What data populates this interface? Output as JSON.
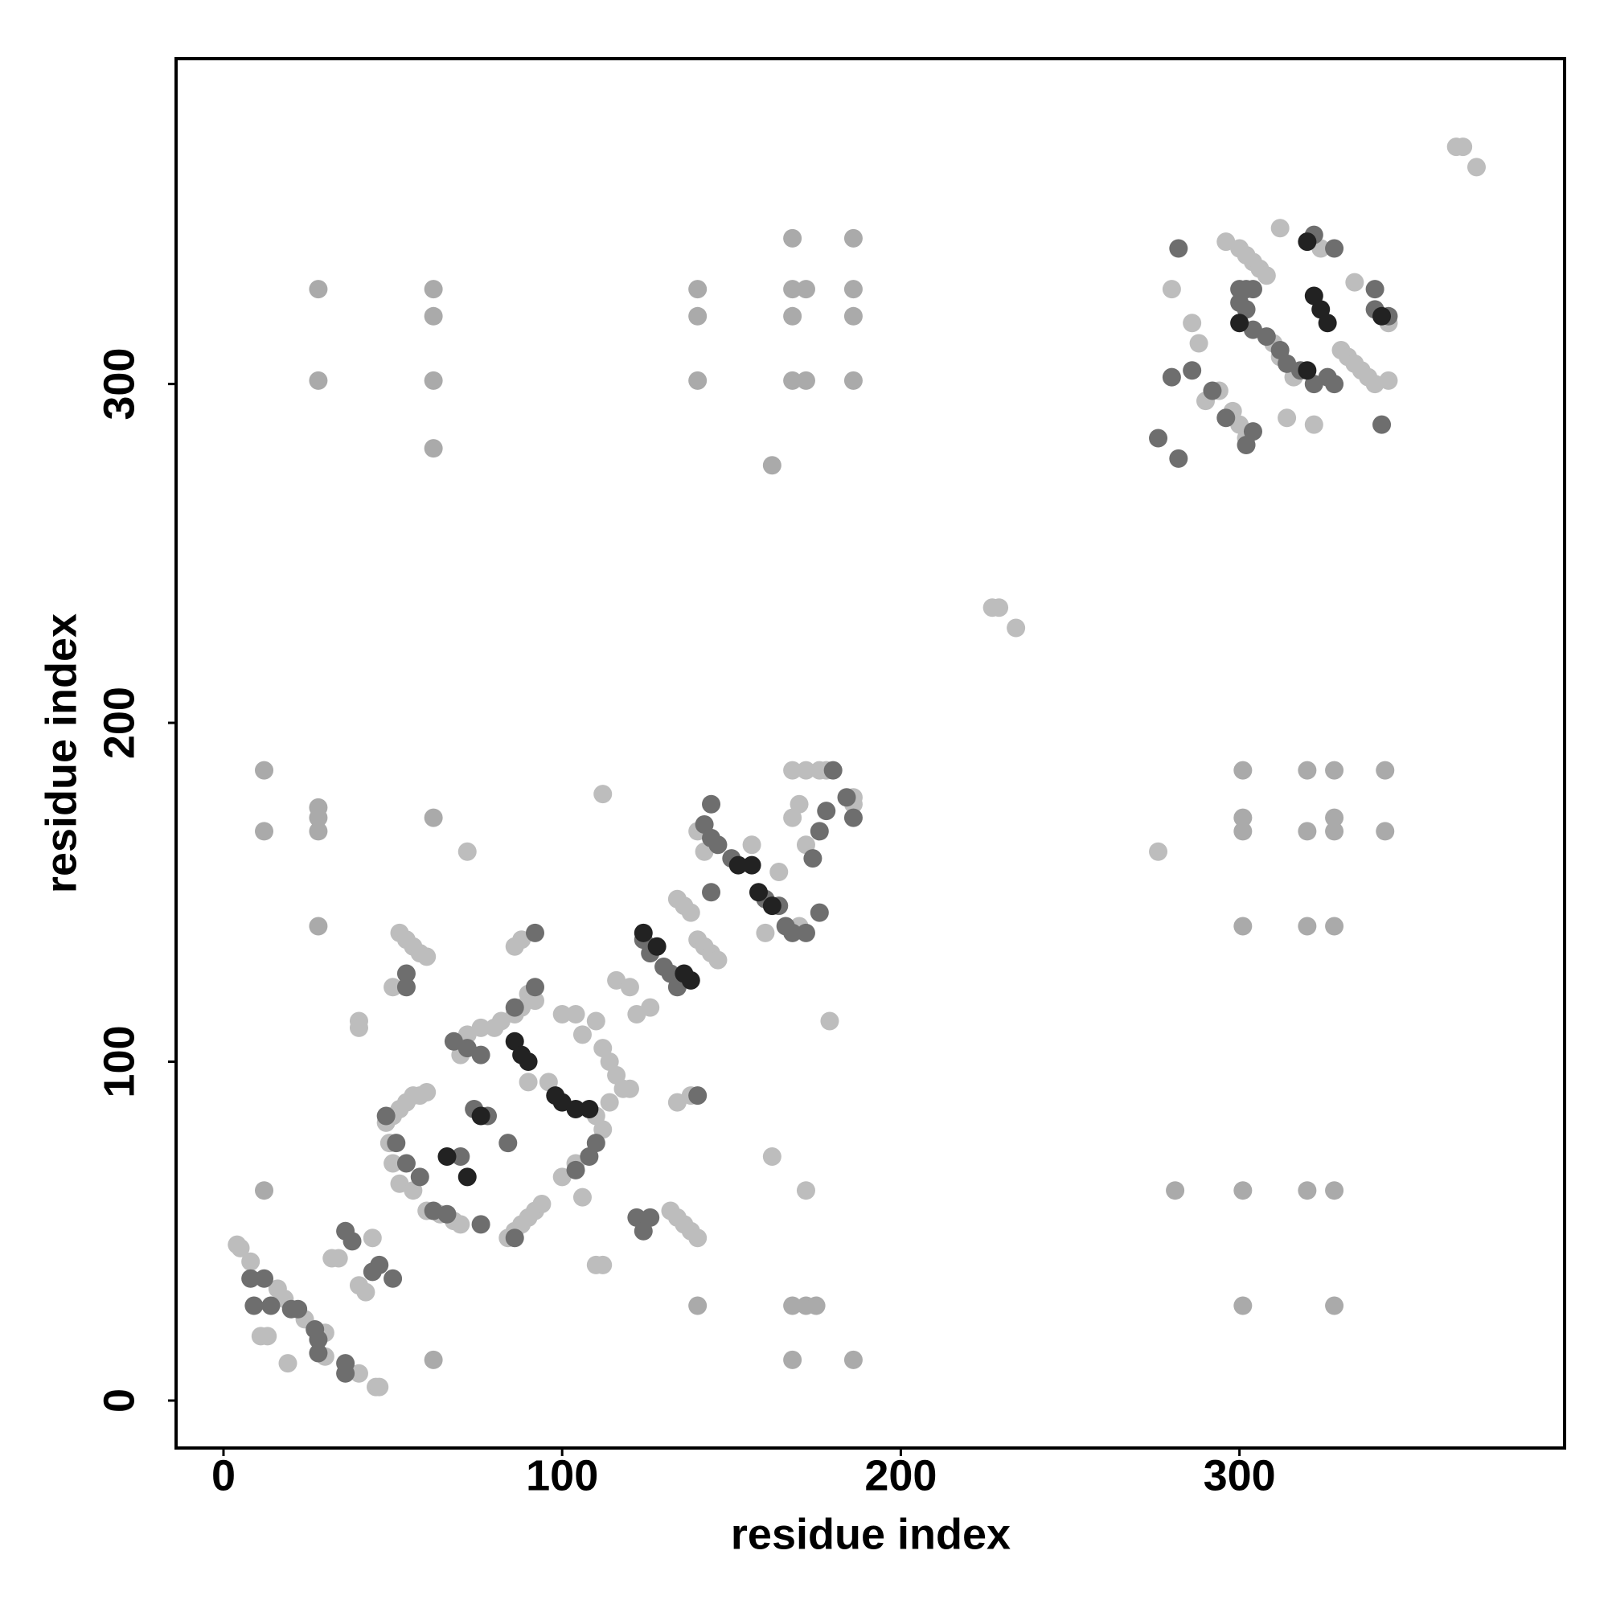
{
  "chart_data": {
    "type": "scatter",
    "xlabel": "residue index",
    "ylabel": "residue index",
    "xlim": [
      -14,
      396
    ],
    "ylim": [
      -14,
      396
    ],
    "xticks": [
      0,
      100,
      200,
      300
    ],
    "yticks": [
      0,
      100,
      200,
      300
    ],
    "grid": false,
    "series": [
      {
        "color": "#bdbdbd",
        "x": [
          4,
          5,
          8,
          11,
          13,
          19,
          364,
          366,
          370,
          227,
          229,
          234,
          72,
          112,
          179,
          162,
          172,
          276,
          110,
          112,
          16,
          18,
          24,
          30,
          30,
          40,
          45,
          46,
          32,
          34,
          40,
          42,
          44,
          40,
          40,
          48,
          50,
          52,
          54,
          56,
          58,
          60,
          49,
          50,
          52,
          56,
          60,
          64,
          68,
          70,
          52,
          54,
          56,
          58,
          60,
          50,
          70,
          72,
          76,
          80,
          82,
          86,
          88,
          90,
          92,
          84,
          86,
          88,
          90,
          92,
          94,
          86,
          88,
          90,
          96,
          100,
          104,
          106,
          110,
          112,
          114,
          116,
          118,
          120,
          114,
          110,
          112,
          104,
          100,
          106,
          116,
          120,
          122,
          126,
          132,
          134,
          136,
          138,
          140,
          134,
          136,
          138,
          134,
          138,
          140,
          142,
          144,
          146,
          140,
          142,
          156,
          164,
          170,
          160,
          168,
          170,
          172,
          176,
          178,
          186,
          186,
          168,
          172,
          296,
          300,
          302,
          304,
          306,
          308,
          330,
          332,
          334,
          336,
          338,
          340,
          344,
          290,
          294,
          298,
          300,
          302,
          312,
          324,
          334,
          344,
          280,
          286,
          288,
          310,
          312,
          316,
          314,
          322
        ],
        "values": [
          46,
          45,
          41,
          19,
          19,
          11,
          370,
          370,
          364,
          234,
          234,
          228,
          162,
          179,
          112,
          72,
          62,
          162,
          40,
          40,
          33,
          30,
          24,
          20,
          13,
          8,
          4,
          4,
          42,
          42,
          34,
          32,
          48,
          112,
          110,
          82,
          84,
          86,
          88,
          90,
          90,
          91,
          76,
          70,
          64,
          62,
          56,
          55,
          53,
          52,
          138,
          136,
          134,
          132,
          131,
          122,
          102,
          108,
          110,
          110,
          112,
          114,
          116,
          120,
          118,
          48,
          50,
          52,
          54,
          56,
          58,
          134,
          136,
          94,
          94,
          114,
          114,
          108,
          112,
          104,
          100,
          96,
          92,
          92,
          88,
          84,
          80,
          70,
          66,
          60,
          124,
          122,
          114,
          116,
          56,
          54,
          52,
          50,
          48,
          148,
          146,
          144,
          88,
          90,
          136,
          134,
          132,
          130,
          168,
          162,
          164,
          156,
          140,
          138,
          172,
          176,
          186,
          186,
          186,
          178,
          176,
          186,
          164,
          342,
          340,
          338,
          336,
          334,
          332,
          310,
          308,
          306,
          304,
          302,
          300,
          301,
          295,
          298,
          292,
          288,
          284,
          346,
          340,
          330,
          318,
          328,
          318,
          312,
          312,
          308,
          302,
          290,
          288
        ]
      },
      {
        "color": "#aaaaaa",
        "x": [
          12,
          12,
          12,
          28,
          28,
          62,
          62,
          62,
          62,
          140,
          140,
          140,
          168,
          168,
          172,
          168,
          168,
          172,
          186,
          186,
          186,
          186,
          162,
          28,
          28,
          28,
          28,
          62,
          301,
          320,
          328,
          343,
          301,
          301,
          320,
          328,
          328,
          343,
          301,
          320,
          328,
          281,
          301,
          320,
          328,
          140,
          168,
          172,
          175,
          301,
          328,
          62,
          168,
          186
        ],
        "values": [
          186,
          168,
          62,
          328,
          301,
          328,
          320,
          301,
          281,
          328,
          320,
          301,
          343,
          328,
          328,
          320,
          301,
          301,
          343,
          328,
          320,
          301,
          276,
          175,
          172,
          168,
          140,
          172,
          186,
          186,
          186,
          186,
          172,
          168,
          168,
          172,
          168,
          168,
          140,
          140,
          140,
          62,
          62,
          62,
          62,
          28,
          28,
          28,
          28,
          28,
          28,
          12,
          12,
          12
        ]
      },
      {
        "color": "#6e6e6e",
        "x": [
          8,
          12,
          9,
          14,
          20,
          22,
          27,
          28,
          28,
          36,
          36,
          36,
          38,
          46,
          50,
          44,
          48,
          51,
          54,
          58,
          62,
          66,
          70,
          78,
          74,
          84,
          76,
          86,
          54,
          54,
          92,
          86,
          92,
          72,
          68,
          76,
          110,
          108,
          104,
          122,
          126,
          124,
          124,
          126,
          130,
          132,
          134,
          140,
          142,
          144,
          144,
          146,
          150,
          144,
          160,
          164,
          166,
          168,
          172,
          176,
          174,
          176,
          178,
          180,
          184,
          186,
          282,
          280,
          286,
          292,
          300,
          302,
          304,
          300,
          302,
          304,
          308,
          312,
          314,
          318,
          322,
          326,
          328,
          340,
          340,
          344,
          296,
          302,
          304,
          328,
          322,
          276,
          282,
          342
        ],
        "values": [
          36,
          36,
          28,
          28,
          27,
          27,
          21,
          18,
          14,
          11,
          8,
          50,
          47,
          40,
          36,
          38,
          84,
          76,
          70,
          66,
          56,
          55,
          72,
          84,
          86,
          76,
          52,
          48,
          126,
          122,
          138,
          116,
          122,
          104,
          106,
          102,
          76,
          72,
          68,
          54,
          54,
          50,
          136,
          132,
          128,
          126,
          122,
          90,
          170,
          176,
          166,
          164,
          160,
          150,
          148,
          146,
          140,
          138,
          138,
          144,
          160,
          168,
          174,
          186,
          178,
          172,
          340,
          302,
          304,
          298,
          328,
          328,
          328,
          324,
          322,
          316,
          314,
          310,
          306,
          304,
          300,
          302,
          300,
          328,
          322,
          320,
          290,
          282,
          286,
          340,
          344,
          284,
          278,
          288
        ]
      },
      {
        "color": "#222222",
        "x": [
          66,
          72,
          76,
          86,
          88,
          90,
          98,
          100,
          104,
          108,
          124,
          128,
          136,
          138,
          158,
          162,
          152,
          156,
          320,
          322,
          324,
          326,
          320,
          342,
          300
        ],
        "values": [
          72,
          66,
          84,
          106,
          102,
          100,
          90,
          88,
          86,
          86,
          138,
          134,
          126,
          124,
          150,
          146,
          158,
          158,
          342,
          326,
          322,
          318,
          304,
          320,
          318
        ]
      }
    ]
  }
}
